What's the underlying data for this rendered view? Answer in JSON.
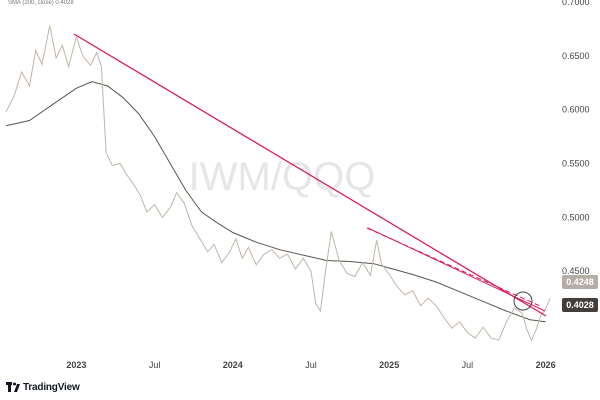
{
  "chart_data": {
    "type": "line",
    "watermark": "IWM/QQQ",
    "legend_text": "SMA (200, close) 0.4028",
    "x_ticks": [
      "2023",
      "Jul",
      "2024",
      "Jul",
      "2025",
      "Jul",
      "2026"
    ],
    "y_ticks": [
      "0.7000",
      "0.6500",
      "0.6000",
      "0.5500",
      "0.5000",
      "0.4500"
    ],
    "ylim": [
      0.375,
      0.7
    ],
    "last_price_label": "0.4248",
    "sma_label": "0.4028",
    "series": [
      {
        "name": "",
        "values": [
          [
            2022.55,
            0.598
          ],
          [
            2022.6,
            0.612
          ],
          [
            2022.65,
            0.635
          ],
          [
            2022.7,
            0.622
          ],
          [
            2022.74,
            0.655
          ],
          [
            2022.78,
            0.642
          ],
          [
            2022.83,
            0.678
          ],
          [
            2022.87,
            0.648
          ],
          [
            2022.91,
            0.66
          ],
          [
            2022.95,
            0.64
          ],
          [
            2023.0,
            0.668
          ],
          [
            2023.04,
            0.65
          ],
          [
            2023.09,
            0.641
          ],
          [
            2023.13,
            0.653
          ],
          [
            2023.16,
            0.64
          ],
          [
            2023.19,
            0.56
          ],
          [
            2023.23,
            0.548
          ],
          [
            2023.28,
            0.55
          ],
          [
            2023.32,
            0.54
          ],
          [
            2023.36,
            0.532
          ],
          [
            2023.41,
            0.52
          ],
          [
            2023.45,
            0.505
          ],
          [
            2023.5,
            0.512
          ],
          [
            2023.55,
            0.5
          ],
          [
            2023.6,
            0.509
          ],
          [
            2023.64,
            0.523
          ],
          [
            2023.69,
            0.513
          ],
          [
            2023.74,
            0.492
          ],
          [
            2023.79,
            0.48
          ],
          [
            2023.84,
            0.468
          ],
          [
            2023.88,
            0.475
          ],
          [
            2023.93,
            0.458
          ],
          [
            2023.98,
            0.468
          ],
          [
            2024.02,
            0.48
          ],
          [
            2024.06,
            0.462
          ],
          [
            2024.1,
            0.472
          ],
          [
            2024.15,
            0.456
          ],
          [
            2024.2,
            0.466
          ],
          [
            2024.25,
            0.47
          ],
          [
            2024.3,
            0.462
          ],
          [
            2024.35,
            0.466
          ],
          [
            2024.4,
            0.452
          ],
          [
            2024.45,
            0.462
          ],
          [
            2024.5,
            0.45
          ],
          [
            2024.53,
            0.42
          ],
          [
            2024.56,
            0.413
          ],
          [
            2024.59,
            0.447
          ],
          [
            2024.63,
            0.487
          ],
          [
            2024.68,
            0.46
          ],
          [
            2024.73,
            0.448
          ],
          [
            2024.78,
            0.445
          ],
          [
            2024.83,
            0.458
          ],
          [
            2024.88,
            0.446
          ],
          [
            2024.92,
            0.479
          ],
          [
            2024.95,
            0.457
          ],
          [
            2025.0,
            0.447
          ],
          [
            2025.05,
            0.436
          ],
          [
            2025.1,
            0.428
          ],
          [
            2025.15,
            0.432
          ],
          [
            2025.2,
            0.418
          ],
          [
            2025.25,
            0.425
          ],
          [
            2025.3,
            0.418
          ],
          [
            2025.35,
            0.407
          ],
          [
            2025.4,
            0.397
          ],
          [
            2025.45,
            0.403
          ],
          [
            2025.5,
            0.393
          ],
          [
            2025.55,
            0.388
          ],
          [
            2025.6,
            0.398
          ],
          [
            2025.65,
            0.388
          ],
          [
            2025.7,
            0.386
          ],
          [
            2025.75,
            0.403
          ],
          [
            2025.8,
            0.416
          ],
          [
            2025.85,
            0.411
          ],
          [
            2025.88,
            0.396
          ],
          [
            2025.91,
            0.386
          ],
          [
            2025.94,
            0.396
          ],
          [
            2025.97,
            0.409
          ],
          [
            2026.0,
            0.415
          ],
          [
            2026.03,
            0.425
          ]
        ]
      },
      {
        "name": "",
        "values": [
          [
            2022.55,
            0.585
          ],
          [
            2022.7,
            0.59
          ],
          [
            2022.85,
            0.605
          ],
          [
            2023.0,
            0.62
          ],
          [
            2023.1,
            0.626
          ],
          [
            2023.2,
            0.622
          ],
          [
            2023.3,
            0.611
          ],
          [
            2023.4,
            0.596
          ],
          [
            2023.5,
            0.575
          ],
          [
            2023.6,
            0.55
          ],
          [
            2023.7,
            0.525
          ],
          [
            2023.8,
            0.505
          ],
          [
            2023.9,
            0.495
          ],
          [
            2024.0,
            0.486
          ],
          [
            2024.15,
            0.477
          ],
          [
            2024.3,
            0.47
          ],
          [
            2024.45,
            0.465
          ],
          [
            2024.6,
            0.46
          ],
          [
            2024.75,
            0.459
          ],
          [
            2024.9,
            0.457
          ],
          [
            2025.0,
            0.453
          ],
          [
            2025.15,
            0.447
          ],
          [
            2025.3,
            0.44
          ],
          [
            2025.45,
            0.431
          ],
          [
            2025.6,
            0.422
          ],
          [
            2025.75,
            0.413
          ],
          [
            2025.9,
            0.405
          ],
          [
            2026.0,
            0.403
          ]
        ]
      }
    ]
  }
}
